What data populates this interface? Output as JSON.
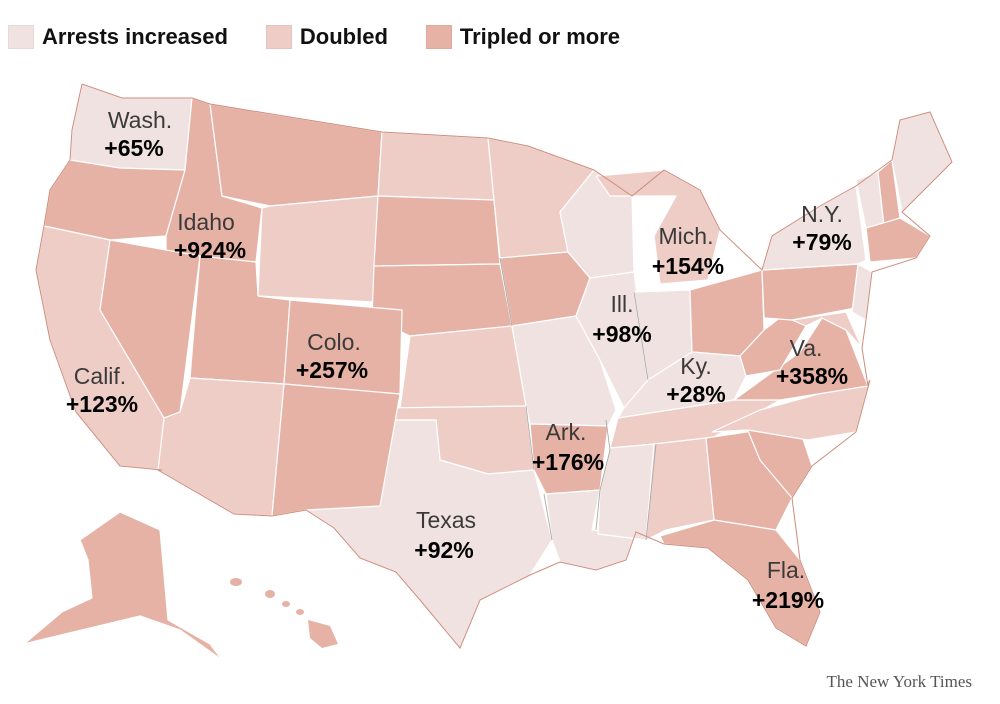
{
  "legend": {
    "items": [
      {
        "label": "Arrests increased",
        "color": "#f0e2e0"
      },
      {
        "label": "Doubled",
        "color": "#eecdc6"
      },
      {
        "label": "Tripled or more",
        "color": "#e6b2a5"
      }
    ]
  },
  "map_data": {
    "labels": {
      "wa": {
        "name": "Wash.",
        "value": "+65%"
      },
      "id": {
        "name": "Idaho",
        "value": "+924%"
      },
      "co": {
        "name": "Colo.",
        "value": "+257%"
      },
      "ca": {
        "name": "Calif.",
        "value": "+123%"
      },
      "tx": {
        "name": "Texas",
        "value": "+92%"
      },
      "ar": {
        "name": "Ark.",
        "value": "+176%"
      },
      "il": {
        "name": "Ill.",
        "value": "+98%"
      },
      "mi": {
        "name": "Mich.",
        "value": "+154%"
      },
      "ky": {
        "name": "Ky.",
        "value": "+28%"
      },
      "ny": {
        "name": "N.Y.",
        "value": "+79%"
      },
      "va": {
        "name": "Va.",
        "value": "+358%"
      },
      "fl": {
        "name": "Fla.",
        "value": "+219%"
      }
    }
  },
  "footer": {
    "credit": "The New York Times"
  }
}
